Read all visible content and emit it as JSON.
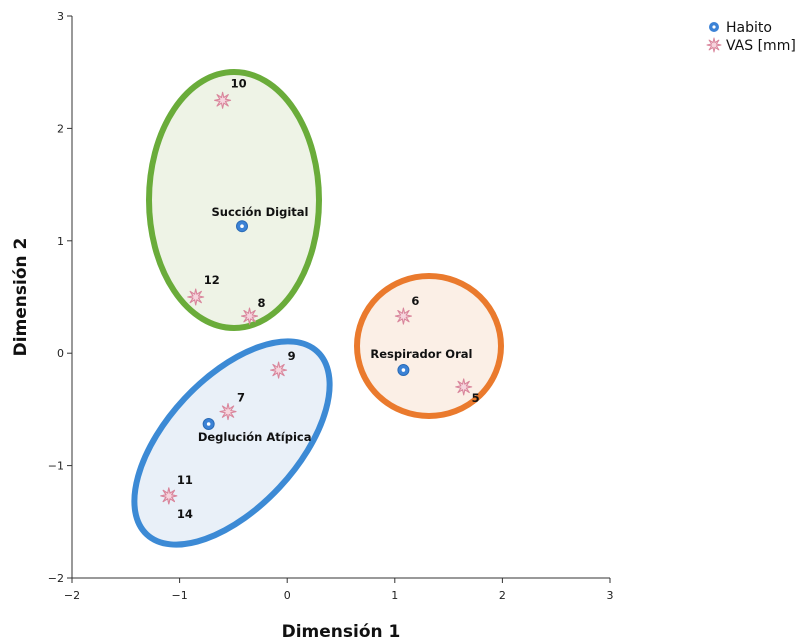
{
  "chart_data": {
    "type": "scatter",
    "title": "",
    "xlabel": "Dimensión 1",
    "ylabel": "Dimensión 2",
    "xlim": [
      -2,
      3
    ],
    "ylim": [
      -2,
      3
    ],
    "xticks": [
      -2,
      -1,
      0,
      1,
      2,
      3
    ],
    "yticks": [
      -2,
      -1,
      0,
      1,
      2,
      3
    ],
    "grid": false,
    "legend_position": "top-right",
    "series": [
      {
        "name": "Habito",
        "marker": "circle",
        "color": "#3b82d6",
        "points": [
          {
            "label": "Succión Digital",
            "x": -0.42,
            "y": 1.13
          },
          {
            "label": "Respirador Oral",
            "x": 1.08,
            "y": -0.15
          },
          {
            "label": "Deglución Atípica",
            "x": -0.73,
            "y": -0.63
          }
        ]
      },
      {
        "name": "VAS [mm]",
        "marker": "star",
        "color": "#d9869c",
        "points": [
          {
            "label": "10",
            "x": -0.6,
            "y": 2.25
          },
          {
            "label": "12",
            "x": -0.85,
            "y": 0.5
          },
          {
            "label": "8",
            "x": -0.35,
            "y": 0.33
          },
          {
            "label": "6",
            "x": 1.08,
            "y": 0.33
          },
          {
            "label": "5",
            "x": 1.64,
            "y": -0.3
          },
          {
            "label": "9",
            "x": -0.08,
            "y": -0.15
          },
          {
            "label": "7",
            "x": -0.55,
            "y": -0.52
          },
          {
            "label": "11",
            "x": -1.1,
            "y": -1.27
          },
          {
            "label": "14",
            "x": -1.1,
            "y": -1.27
          }
        ]
      }
    ],
    "groups": [
      {
        "name": "Succión Digital",
        "color": "#6aac3a",
        "fill": "#eef3e6"
      },
      {
        "name": "Respirador Oral",
        "color": "#ea7a2d",
        "fill": "#fbefe6"
      },
      {
        "name": "Deglución Atípica",
        "color": "#3c8ad5",
        "fill": "#e9f0f8"
      }
    ]
  }
}
